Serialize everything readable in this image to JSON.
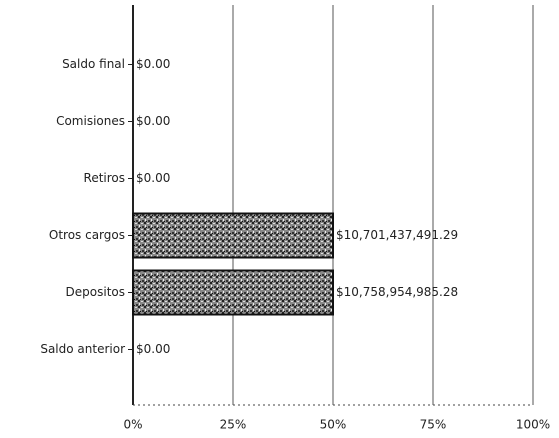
{
  "chart_data": {
    "type": "bar",
    "orientation": "horizontal",
    "categories": [
      "Saldo final",
      "Comisiones",
      "Retiros",
      "Otros cargos",
      "Depositos",
      "Saldo anterior"
    ],
    "values": [
      0,
      0,
      0,
      50,
      50,
      0
    ],
    "amount_labels": [
      "$0.00",
      "$0.00",
      "$0.00",
      "$10,701,437,491.29",
      "$10,758,954,985.28",
      "$0.00"
    ],
    "color": "#777777",
    "xlim": [
      0,
      100
    ],
    "xticks": [
      {
        "value": 0,
        "label": "0%"
      },
      {
        "value": 25,
        "label": "25%"
      },
      {
        "value": 50,
        "label": "50%"
      },
      {
        "value": 75,
        "label": "75%"
      },
      {
        "value": 100,
        "label": "100%"
      }
    ],
    "grid": true
  }
}
